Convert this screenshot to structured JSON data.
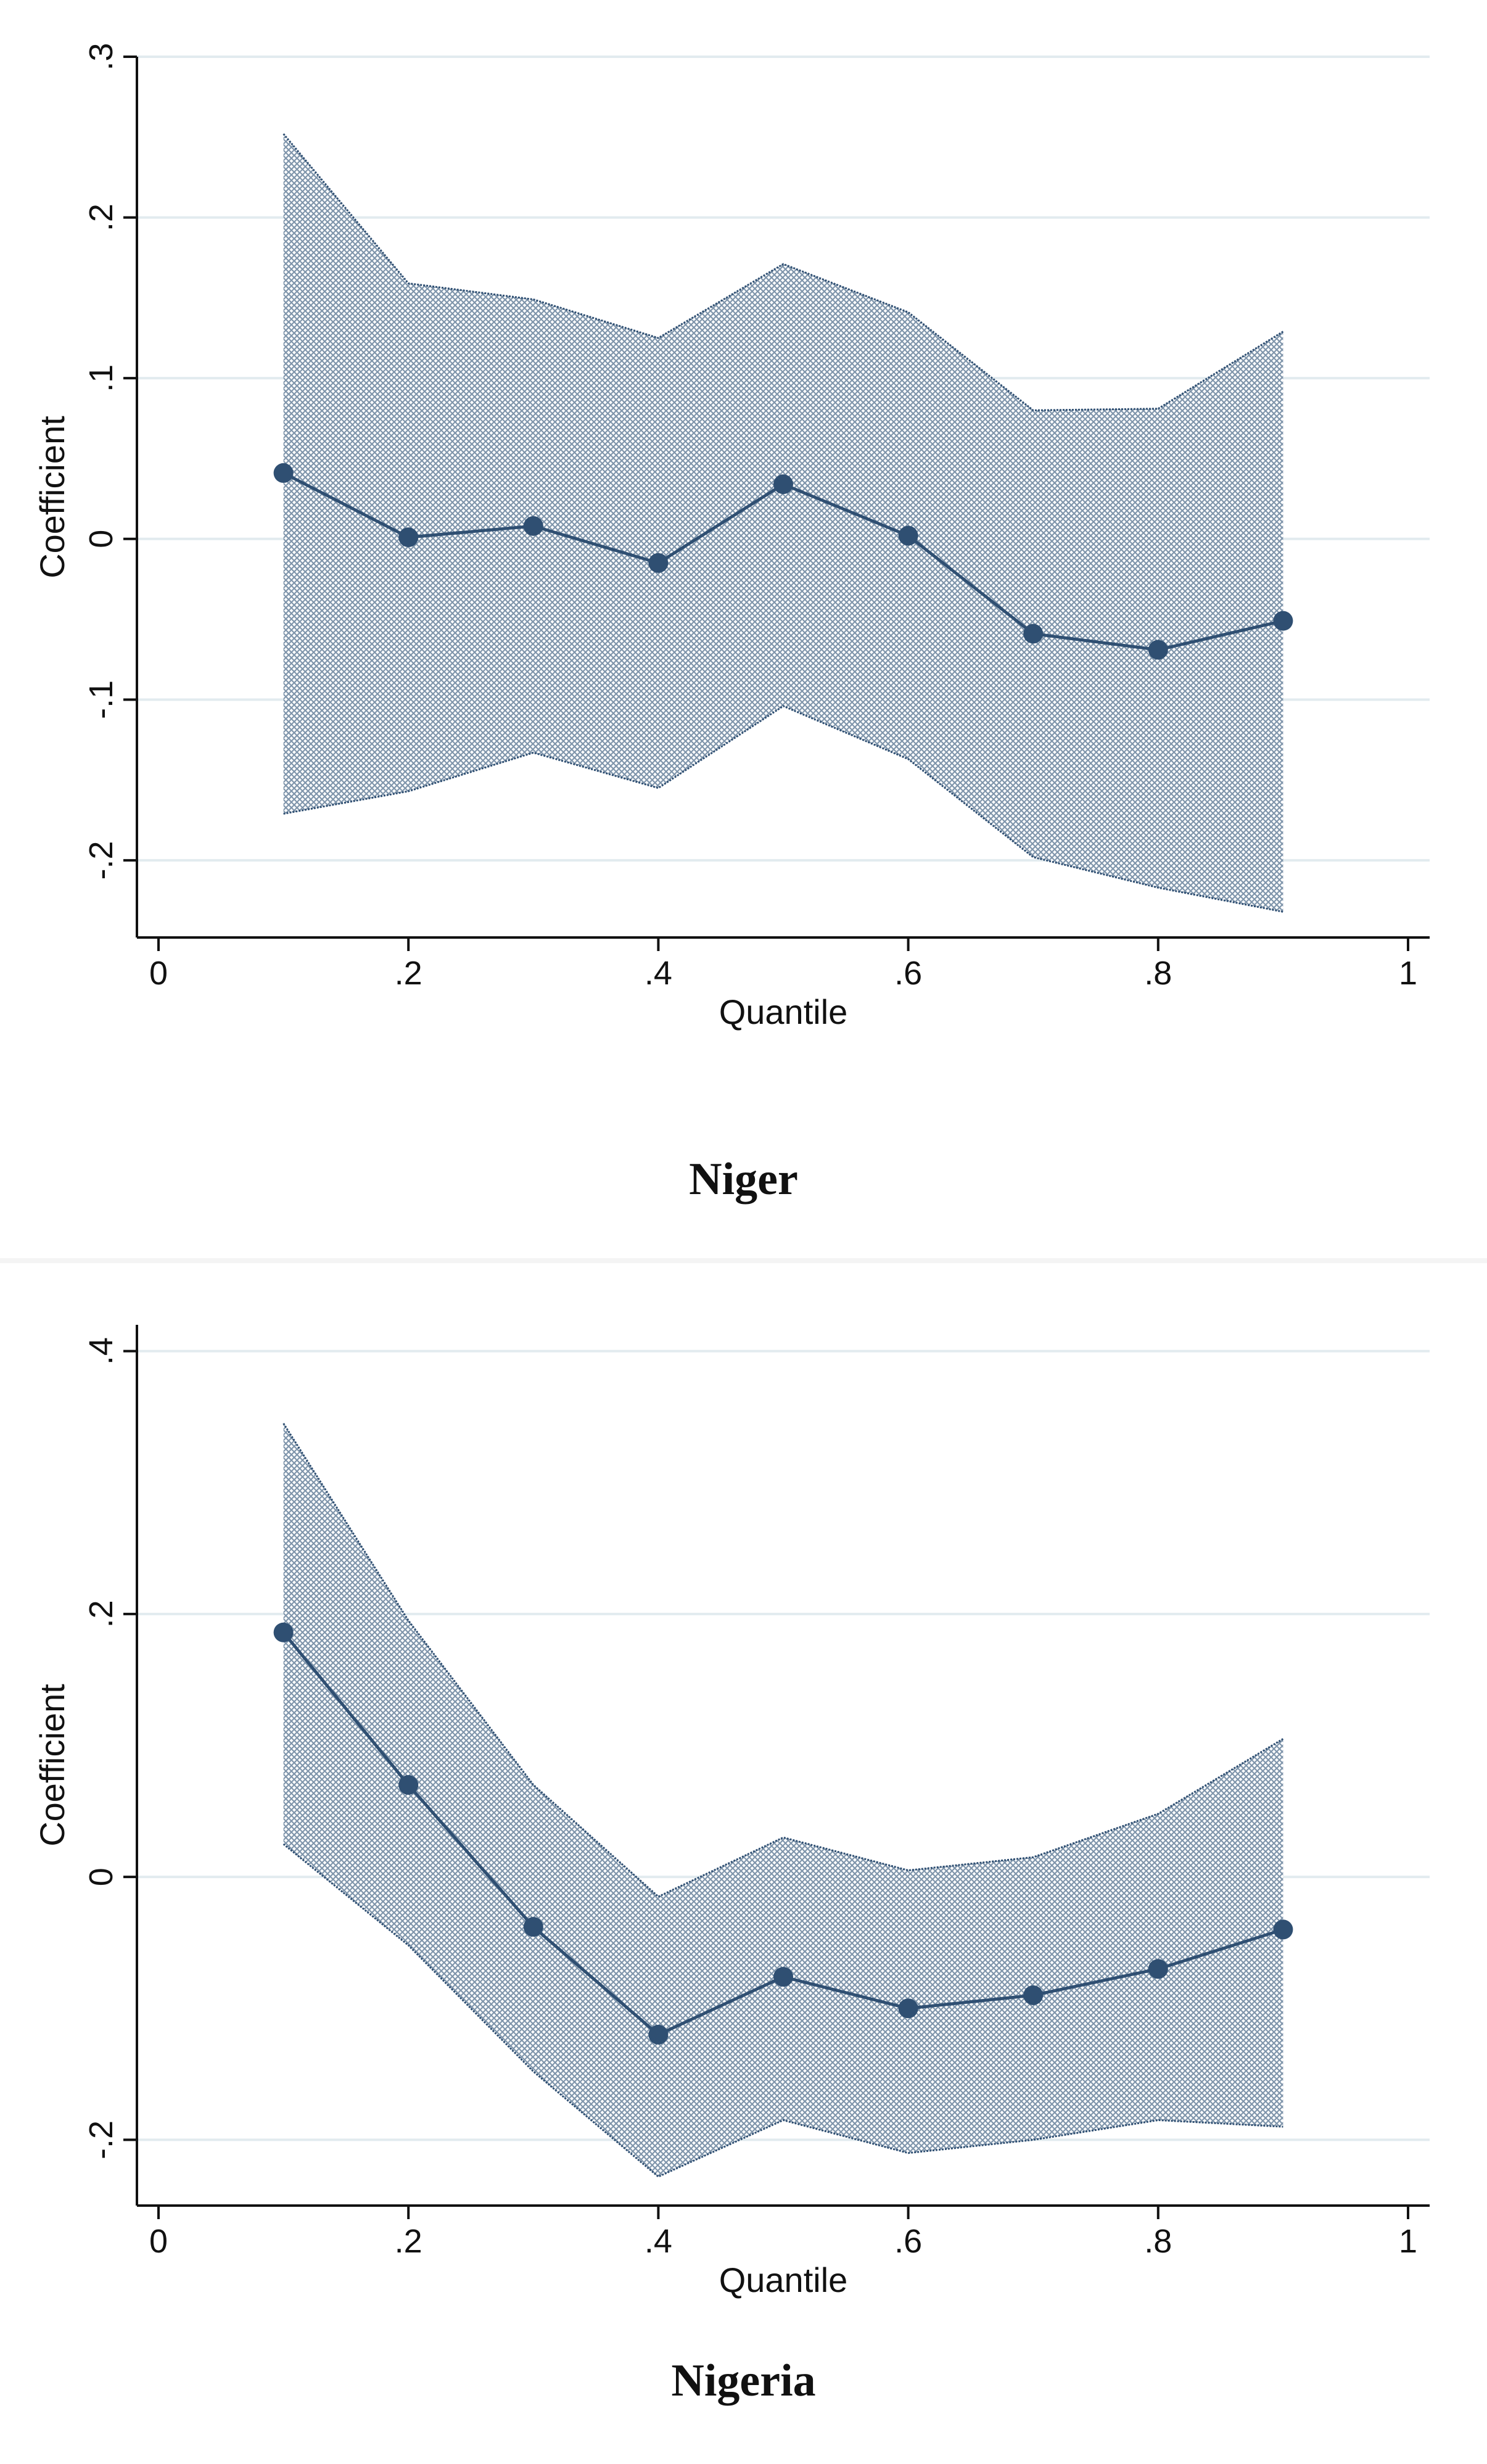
{
  "chart_data": [
    {
      "type": "area",
      "title": "Niger",
      "xlabel": "Quantile",
      "ylabel": "Coefficient",
      "xlim": [
        0,
        1
      ],
      "ylim": [
        -0.248,
        0.3
      ],
      "x_ticks": [
        0,
        0.2,
        0.4,
        0.6,
        0.8,
        1
      ],
      "x_tick_labels": [
        "0",
        ".2",
        ".4",
        ".6",
        ".8",
        "1"
      ],
      "y_ticks": [
        -0.2,
        -0.1,
        0,
        0.1,
        0.2,
        0.3
      ],
      "y_tick_labels": [
        "-.2",
        "-.1",
        "0",
        ".1",
        ".2",
        ".3"
      ],
      "grid": true,
      "x": [
        0.1,
        0.2,
        0.3,
        0.4,
        0.5,
        0.6,
        0.7,
        0.8,
        0.9
      ],
      "series": [
        {
          "name": "Coefficient",
          "values": [
            0.041,
            0.001,
            0.008,
            -0.015,
            0.034,
            0.002,
            -0.059,
            -0.069,
            -0.051
          ]
        },
        {
          "name": "Upper bound",
          "values": [
            0.252,
            0.159,
            0.149,
            0.125,
            0.171,
            0.141,
            0.08,
            0.081,
            0.129
          ]
        },
        {
          "name": "Lower bound",
          "values": [
            -0.171,
            -0.157,
            -0.133,
            -0.155,
            -0.104,
            -0.137,
            -0.198,
            -0.217,
            -0.232
          ]
        }
      ],
      "colors": {
        "line": "#2f4f72",
        "band": "#7f95ab",
        "grid": "#e2ebef",
        "axis": "#111111"
      }
    },
    {
      "type": "area",
      "title": "Nigeria",
      "xlabel": "Quantile",
      "ylabel": "Coefficient",
      "xlim": [
        0,
        1
      ],
      "ylim": [
        -0.25,
        0.42
      ],
      "x_ticks": [
        0,
        0.2,
        0.4,
        0.6,
        0.8,
        1
      ],
      "x_tick_labels": [
        "0",
        ".2",
        ".4",
        ".6",
        ".8",
        "1"
      ],
      "y_ticks": [
        -0.2,
        0,
        0.2,
        0.4
      ],
      "y_tick_labels": [
        "-.2",
        "0",
        ".2",
        ".4"
      ],
      "grid": true,
      "x": [
        0.1,
        0.2,
        0.3,
        0.4,
        0.5,
        0.6,
        0.7,
        0.8,
        0.9
      ],
      "series": [
        {
          "name": "Coefficient",
          "values": [
            0.186,
            0.07,
            -0.038,
            -0.12,
            -0.076,
            -0.1,
            -0.09,
            -0.07,
            -0.04
          ]
        },
        {
          "name": "Upper bound",
          "values": [
            0.345,
            0.195,
            0.07,
            -0.015,
            0.03,
            0.005,
            0.015,
            0.048,
            0.105
          ]
        },
        {
          "name": "Lower bound",
          "values": [
            0.025,
            -0.052,
            -0.148,
            -0.228,
            -0.185,
            -0.21,
            -0.2,
            -0.185,
            -0.19
          ]
        }
      ],
      "colors": {
        "line": "#2f4f72",
        "band": "#7f95ab",
        "grid": "#e2ebef",
        "axis": "#111111"
      }
    }
  ]
}
